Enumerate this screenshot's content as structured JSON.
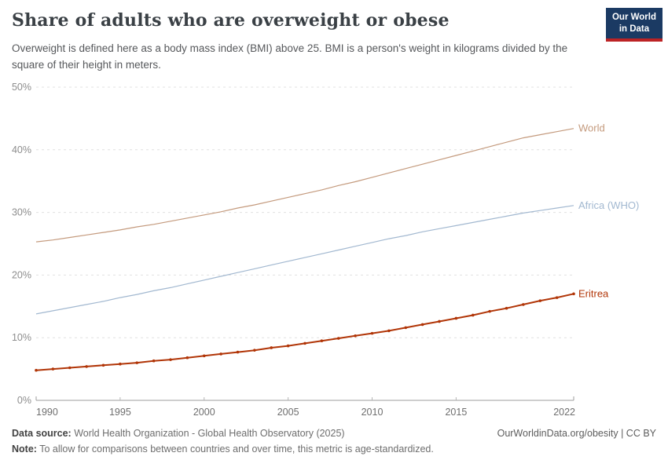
{
  "header": {
    "title": "Share of adults who are overweight or obese",
    "subtitle": "Overweight is defined here as a body mass index (BMI) above 25. BMI is a person's weight in kilograms divided by the square of their height in meters.",
    "logo_line1": "Our World",
    "logo_line2": "in Data",
    "logo_bg_color": "#1b3a63",
    "logo_stripe_color": "#bc2325"
  },
  "chart_data": {
    "type": "line",
    "title": "Share of adults who are overweight or obese",
    "xlabel": "",
    "ylabel": "",
    "xlim": [
      1990,
      2022
    ],
    "ylim": [
      0,
      50
    ],
    "grid": "horizontal-dashed",
    "legend_position": "right-edge-labels",
    "x_ticks": [
      1990,
      1995,
      2000,
      2005,
      2010,
      2015,
      2022
    ],
    "y_ticks": [
      0,
      10,
      20,
      30,
      40,
      50
    ],
    "y_tick_suffix": "%",
    "x": [
      1990,
      1991,
      1992,
      1993,
      1994,
      1995,
      1996,
      1997,
      1998,
      1999,
      2000,
      2001,
      2002,
      2003,
      2004,
      2005,
      2006,
      2007,
      2008,
      2009,
      2010,
      2011,
      2012,
      2013,
      2014,
      2015,
      2016,
      2017,
      2018,
      2019,
      2020,
      2021,
      2022
    ],
    "series": [
      {
        "name": "World",
        "color": "#c49a7d",
        "line_width": 1.2,
        "markers": false,
        "values": [
          25.3,
          25.6,
          26.0,
          26.4,
          26.8,
          27.2,
          27.7,
          28.1,
          28.6,
          29.1,
          29.6,
          30.1,
          30.7,
          31.2,
          31.8,
          32.4,
          33.0,
          33.6,
          34.3,
          34.9,
          35.6,
          36.3,
          37.0,
          37.7,
          38.4,
          39.1,
          39.8,
          40.5,
          41.2,
          41.9,
          42.4,
          42.9,
          43.4
        ]
      },
      {
        "name": "Africa (WHO)",
        "color": "#a2b8d0",
        "line_width": 1.2,
        "markers": false,
        "values": [
          13.8,
          14.3,
          14.8,
          15.3,
          15.8,
          16.4,
          16.9,
          17.5,
          18.0,
          18.6,
          19.2,
          19.8,
          20.4,
          21.0,
          21.6,
          22.2,
          22.8,
          23.4,
          24.0,
          24.6,
          25.2,
          25.8,
          26.3,
          26.9,
          27.4,
          27.9,
          28.4,
          28.9,
          29.4,
          29.9,
          30.3,
          30.7,
          31.1
        ]
      },
      {
        "name": "Eritrea",
        "color": "#b13507",
        "line_width": 2,
        "markers": true,
        "values": [
          4.8,
          5.0,
          5.2,
          5.4,
          5.6,
          5.8,
          6.0,
          6.3,
          6.5,
          6.8,
          7.1,
          7.4,
          7.7,
          8.0,
          8.4,
          8.7,
          9.1,
          9.5,
          9.9,
          10.3,
          10.7,
          11.1,
          11.6,
          12.1,
          12.6,
          13.1,
          13.6,
          14.2,
          14.7,
          15.3,
          15.9,
          16.4,
          17.0
        ]
      }
    ]
  },
  "footer": {
    "datasource_label": "Data source:",
    "datasource_text": " World Health Organization - Global Health Observatory (2025)",
    "rights": "OurWorldinData.org/obesity | CC BY",
    "note_label": "Note:",
    "note_text": " To allow for comparisons between countries and over time, this metric is age-standardized."
  }
}
